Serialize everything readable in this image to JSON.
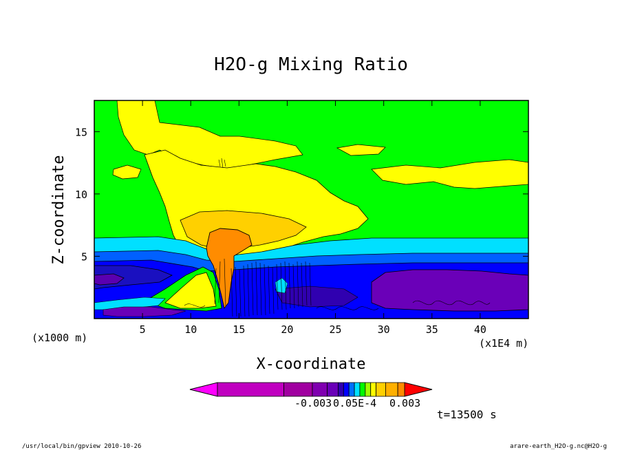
{
  "chart_data": {
    "type": "heatmap",
    "title": "H2O-g Mixing Ratio",
    "xlabel": "X-coordinate",
    "ylabel": "Z-coordinate",
    "x_unit_left": "(x1000 m)",
    "x_unit_right": "(x1E4 m)",
    "xlim": [
      0,
      45
    ],
    "ylim": [
      0,
      17.5
    ],
    "xticks": [
      5,
      10,
      15,
      20,
      25,
      30,
      35,
      40
    ],
    "yticks": [
      5,
      10,
      15
    ],
    "time_label": "t=13500 s",
    "colorbar": {
      "labels": [
        "-0.003",
        "0.05E-4",
        "0.003"
      ],
      "colors": [
        "#ff00ff",
        "#c000c0",
        "#a000a0",
        "#8000b0",
        "#6a00b8",
        "#3000b0",
        "#0000ff",
        "#0070ff",
        "#00e0ff",
        "#00ff00",
        "#a0ff00",
        "#ffff00",
        "#ffd000",
        "#ffb000",
        "#ff8c00",
        "#ff0000"
      ]
    },
    "regions": [
      {
        "name": "lower-blue-layer",
        "z_range": [
          0,
          5.5
        ],
        "color": "#0000ff"
      },
      {
        "name": "dark-blue-band",
        "z_range": [
          3.5,
          5.5
        ],
        "color": "#1010d0"
      },
      {
        "name": "cyan-band",
        "z_range": [
          5.5,
          6.8
        ],
        "color": "#00e0ff"
      },
      {
        "name": "green-background",
        "z_range": [
          6.8,
          17.5
        ],
        "color": "#00ff00"
      },
      {
        "name": "yellow-anvil",
        "x_range": [
          7,
          28
        ],
        "z_range": [
          6.5,
          17
        ],
        "color": "#ffff00"
      },
      {
        "name": "orange-core",
        "x_range": [
          12,
          15
        ],
        "z_range": [
          1,
          7
        ],
        "color": "#ff8c00"
      },
      {
        "name": "purple-dry-zone",
        "x_range": [
          29,
          45
        ],
        "z_range": [
          0.5,
          4
        ],
        "color": "#6a00b8"
      }
    ]
  },
  "footer": {
    "left": "/usr/local/bin/gpview  2010-10-26",
    "right": "arare-earth_H2O-g.nc@H2O-g"
  }
}
